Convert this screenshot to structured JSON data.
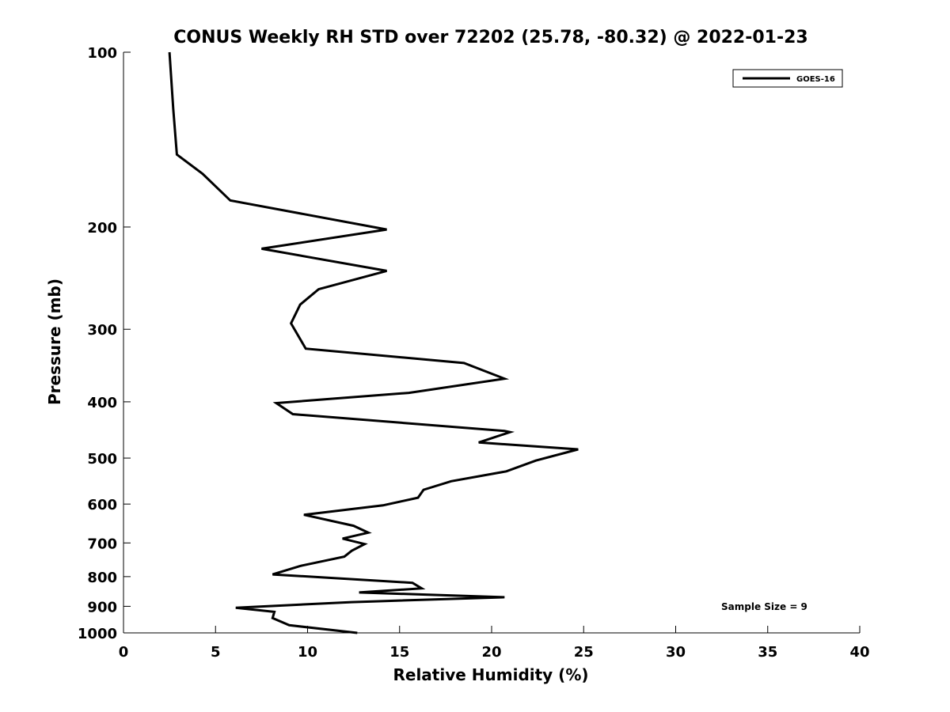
{
  "chart_data": {
    "type": "line",
    "title": "CONUS Weekly RH STD over 72202 (25.78, -80.32) @ 2022-01-23",
    "xlabel": "Relative Humidity (%)",
    "ylabel": "Pressure (mb)",
    "xlim": [
      0,
      40
    ],
    "ylim": [
      100,
      1000
    ],
    "yscale": "log",
    "yaxis_inverted": true,
    "xticks": [
      0,
      5,
      10,
      15,
      20,
      25,
      30,
      35,
      40
    ],
    "yticks": [
      100,
      200,
      300,
      400,
      500,
      600,
      700,
      800,
      900,
      1000
    ],
    "grid": false,
    "legend_position": "top-right",
    "series": [
      {
        "name": "GOES-16",
        "color": "#000000",
        "x": [
          2.5,
          2.7,
          2.9,
          4.3,
          5.8,
          14.3,
          7.5,
          14.3,
          10.6,
          9.6,
          9.1,
          9.9,
          18.5,
          20.7,
          15.5,
          8.3,
          9.2,
          20.7,
          21.0,
          19.3,
          24.7,
          22.4,
          20.8,
          17.8,
          16.3,
          16.0,
          14.1,
          9.8,
          12.5,
          13.3,
          11.9,
          13.1,
          12.4,
          12.0,
          9.6,
          8.1,
          15.7,
          16.2,
          12.8,
          20.7,
          12.4,
          6.1,
          8.2,
          8.1,
          9.0,
          12.7
        ],
        "y": [
          100,
          125,
          150,
          162,
          180,
          202,
          218,
          238,
          256,
          272,
          293,
          324,
          343,
          365,
          386,
          402,
          420,
          449,
          451,
          470,
          483,
          505,
          527,
          548,
          567,
          585,
          603,
          626,
          654,
          672,
          688,
          703,
          722,
          739,
          767,
          793,
          820,
          838,
          852,
          868,
          885,
          905,
          920,
          943,
          970,
          1000
        ]
      }
    ],
    "annotations": [
      "Sample Size = 9"
    ]
  }
}
